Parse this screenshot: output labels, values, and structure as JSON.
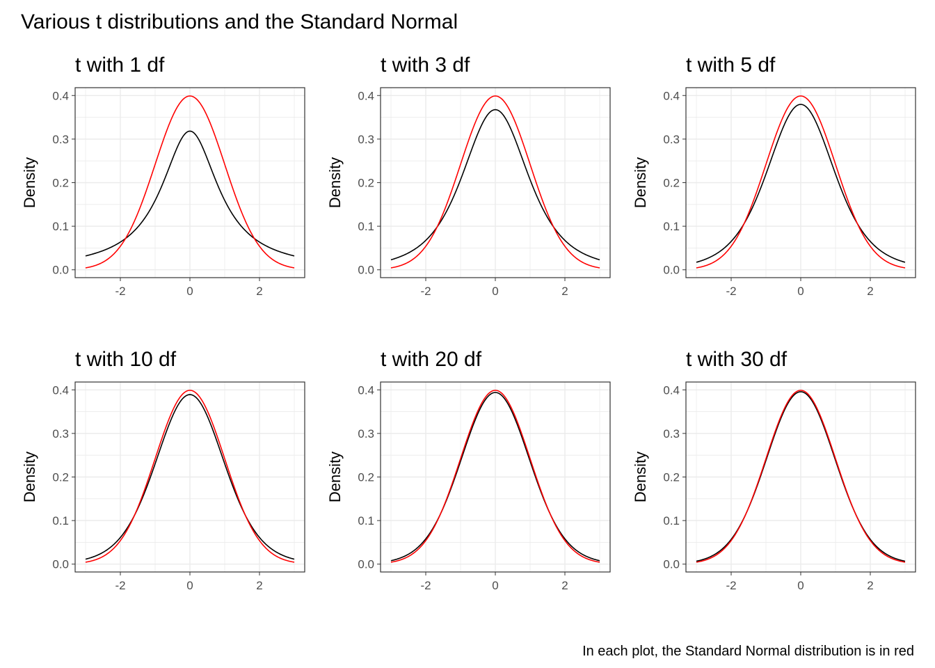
{
  "title": "Various t distributions and the Standard Normal",
  "caption": "In each plot, the Standard Normal distribution is in red",
  "colors": {
    "t_curve": "#000000",
    "normal_curve": "#ff0000",
    "grid": "#ebebeb",
    "panel_border": "#333333",
    "tick_text": "#4d4d4d"
  },
  "chart_data": [
    {
      "type": "line",
      "title": "t with 1 df",
      "df": 1,
      "xlabel": "",
      "ylabel": "Density",
      "xlim": [
        -3,
        3
      ],
      "ylim": [
        0,
        0.4
      ],
      "x_ticks": [
        "-2",
        "0",
        "2"
      ],
      "y_ticks": [
        "0.0",
        "0.1",
        "0.2",
        "0.3",
        "0.4"
      ],
      "grid": true,
      "legend": "none"
    },
    {
      "type": "line",
      "title": "t with 3 df",
      "df": 3,
      "xlabel": "",
      "ylabel": "Density",
      "xlim": [
        -3,
        3
      ],
      "ylim": [
        0,
        0.4
      ],
      "x_ticks": [
        "-2",
        "0",
        "2"
      ],
      "y_ticks": [
        "0.0",
        "0.1",
        "0.2",
        "0.3",
        "0.4"
      ],
      "grid": true,
      "legend": "none"
    },
    {
      "type": "line",
      "title": "t with 5 df",
      "df": 5,
      "xlabel": "",
      "ylabel": "Density",
      "xlim": [
        -3,
        3
      ],
      "ylim": [
        0,
        0.4
      ],
      "x_ticks": [
        "-2",
        "0",
        "2"
      ],
      "y_ticks": [
        "0.0",
        "0.1",
        "0.2",
        "0.3",
        "0.4"
      ],
      "grid": true,
      "legend": "none"
    },
    {
      "type": "line",
      "title": "t with 10 df",
      "df": 10,
      "xlabel": "",
      "ylabel": "Density",
      "xlim": [
        -3,
        3
      ],
      "ylim": [
        0,
        0.4
      ],
      "x_ticks": [
        "-2",
        "0",
        "2"
      ],
      "y_ticks": [
        "0.0",
        "0.1",
        "0.2",
        "0.3",
        "0.4"
      ],
      "grid": true,
      "legend": "none"
    },
    {
      "type": "line",
      "title": "t with 20 df",
      "df": 20,
      "xlabel": "",
      "ylabel": "Density",
      "xlim": [
        -3,
        3
      ],
      "ylim": [
        0,
        0.4
      ],
      "x_ticks": [
        "-2",
        "0",
        "2"
      ],
      "y_ticks": [
        "0.0",
        "0.1",
        "0.2",
        "0.3",
        "0.4"
      ],
      "grid": true,
      "legend": "none"
    },
    {
      "type": "line",
      "title": "t with 30 df",
      "df": 30,
      "xlabel": "",
      "ylabel": "Density",
      "xlim": [
        -3,
        3
      ],
      "ylim": [
        0,
        0.4
      ],
      "x_ticks": [
        "-2",
        "0",
        "2"
      ],
      "y_ticks": [
        "0.0",
        "0.1",
        "0.2",
        "0.3",
        "0.4"
      ],
      "grid": true,
      "legend": "none"
    }
  ]
}
